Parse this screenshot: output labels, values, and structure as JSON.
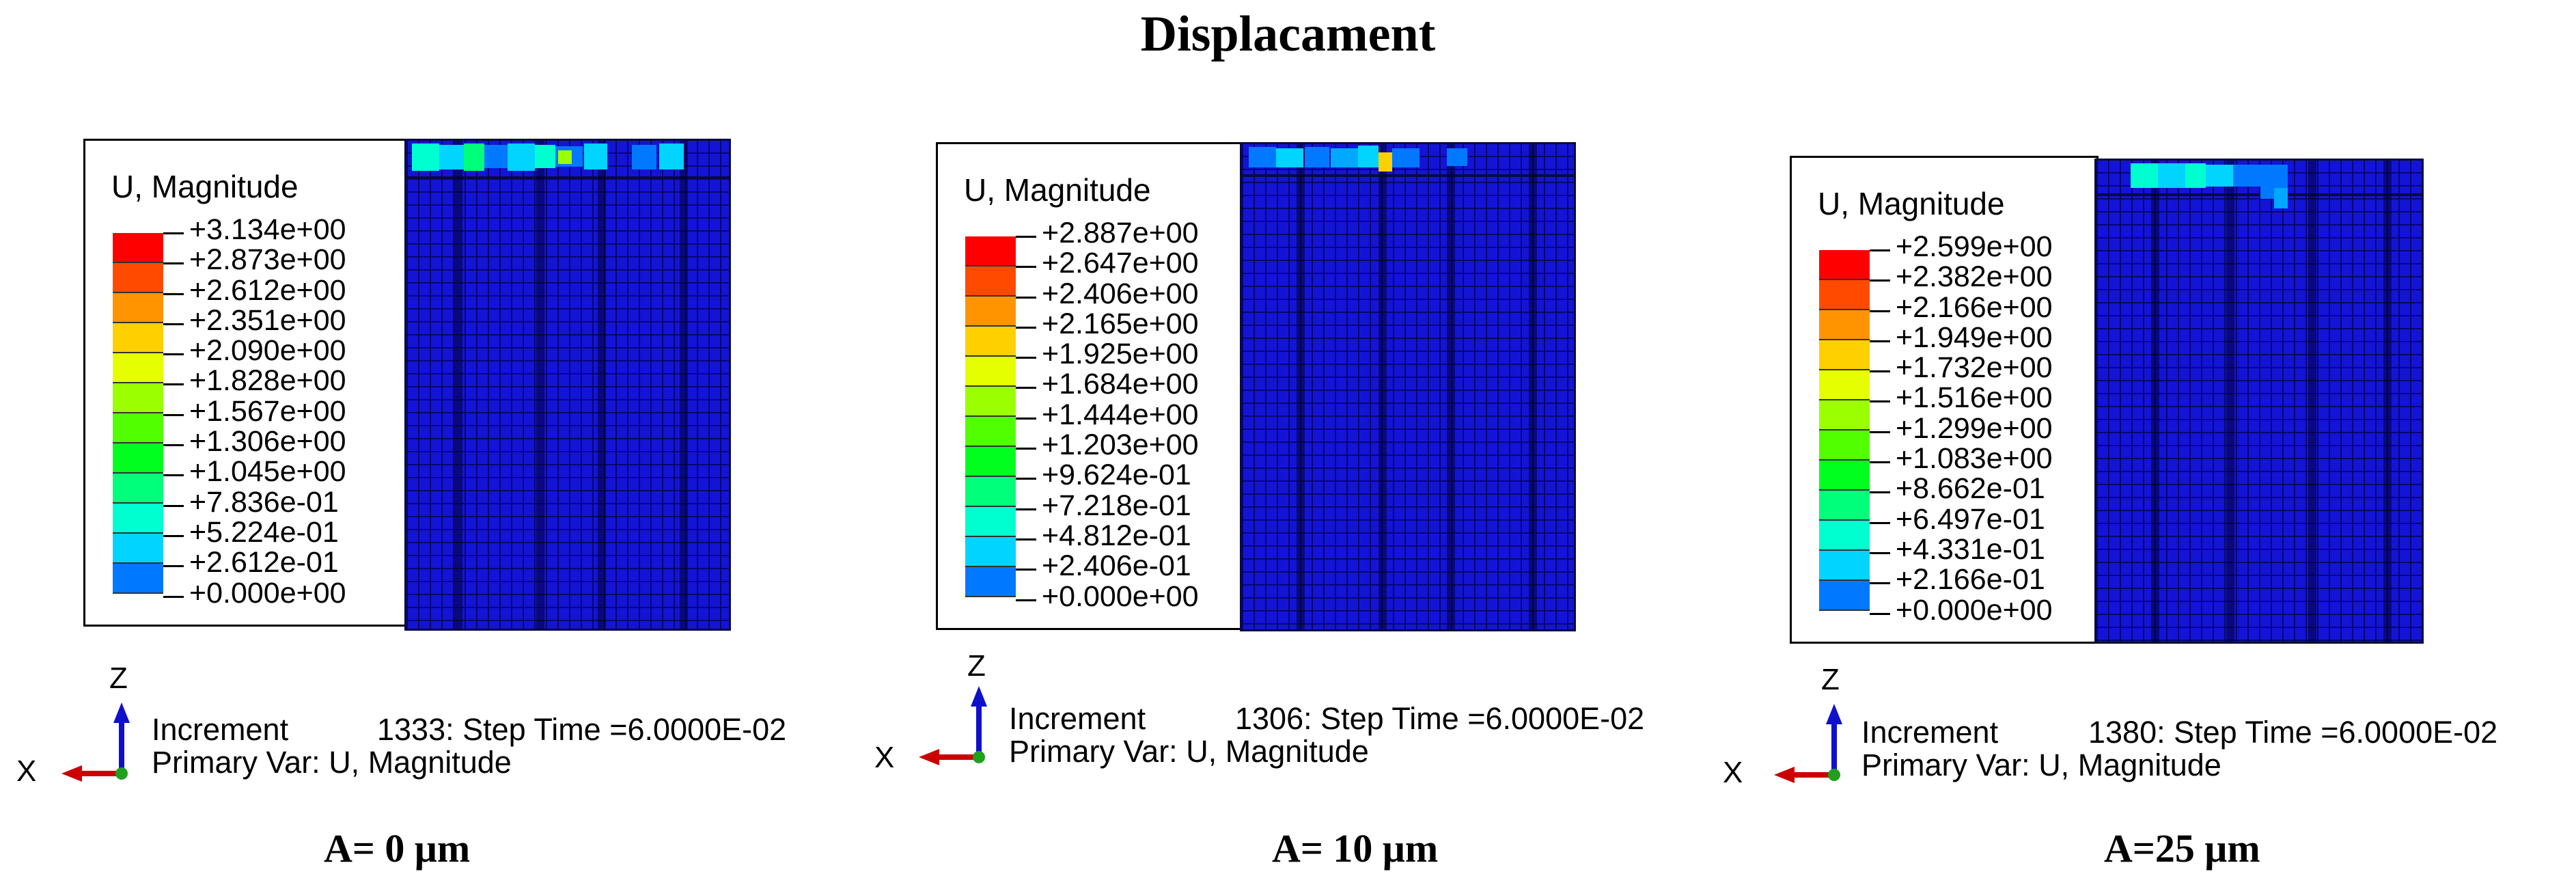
{
  "title": "Displacament",
  "colors": [
    "#ff0000",
    "#ff4a00",
    "#ff9400",
    "#ffd000",
    "#e6ff00",
    "#9cff00",
    "#52ff00",
    "#00ff1f",
    "#00ff7a",
    "#00ffd0",
    "#00d4ff",
    "#0078ff",
    "#0026ff"
  ],
  "panels": [
    {
      "legend_title": "U, Magnitude",
      "values": [
        "+3.134e+00",
        "+2.873e+00",
        "+2.612e+00",
        "+2.351e+00",
        "+2.090e+00",
        "+1.828e+00",
        "+1.567e+00",
        "+1.306e+00",
        "+1.045e+00",
        "+7.836e-01",
        "+5.224e-01",
        "+2.612e-01",
        "+0.000e+00"
      ],
      "axis_z": "Z",
      "axis_x": "X",
      "increment_label": "Increment",
      "increment_text": "1333: Step Time =6.0000E-02",
      "primary_var": "Primary Var: U, Magnitude",
      "caption": "A= 0 μm"
    },
    {
      "legend_title": "U, Magnitude",
      "values": [
        "+2.887e+00",
        "+2.647e+00",
        "+2.406e+00",
        "+2.165e+00",
        "+1.925e+00",
        "+1.684e+00",
        "+1.444e+00",
        "+1.203e+00",
        "+9.624e-01",
        "+7.218e-01",
        "+4.812e-01",
        "+2.406e-01",
        "+0.000e+00"
      ],
      "axis_z": "Z",
      "axis_x": "X",
      "increment_label": "Increment",
      "increment_text": "1306: Step Time =6.0000E-02",
      "primary_var": "Primary Var: U, Magnitude",
      "caption": "A= 10 μm"
    },
    {
      "legend_title": "U, Magnitude",
      "values": [
        "+2.599e+00",
        "+2.382e+00",
        "+2.166e+00",
        "+1.949e+00",
        "+1.732e+00",
        "+1.516e+00",
        "+1.299e+00",
        "+1.083e+00",
        "+8.662e-01",
        "+6.497e-01",
        "+4.331e-01",
        "+2.166e-01",
        "+0.000e+00"
      ],
      "axis_z": "Z",
      "axis_x": "X",
      "increment_label": "Increment",
      "increment_text": "1380: Step Time =6.0000E-02",
      "primary_var": "Primary Var: U, Magnitude",
      "caption": "A=25 μm"
    }
  ]
}
